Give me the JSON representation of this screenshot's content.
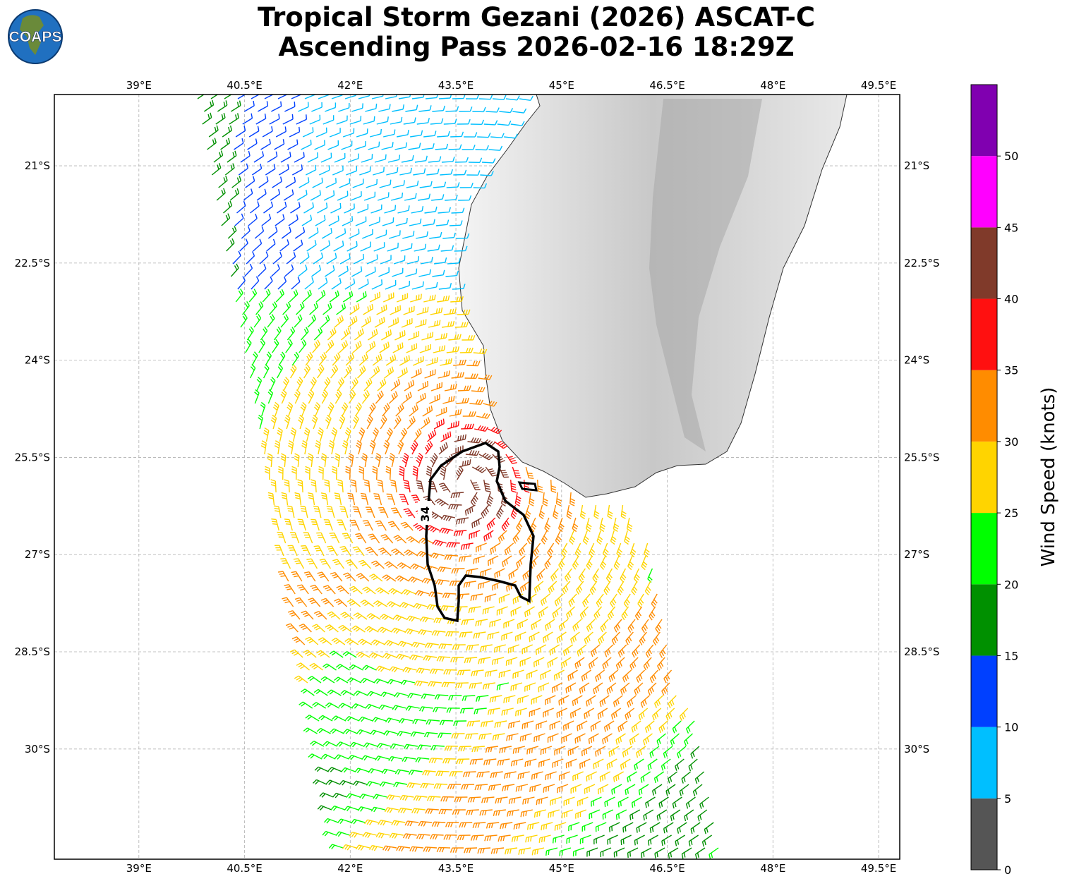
{
  "title": {
    "line1": "Tropical Storm Gezani (2026) ASCAT-C",
    "line2": "Ascending Pass 2026-02-16 18:29Z"
  },
  "logo": {
    "text": "COAPS",
    "icon": "globe-icon"
  },
  "map": {
    "lon_range": [
      37.8,
      49.8
    ],
    "lat_range": [
      -31.7,
      -19.9
    ],
    "lon_ticks": [
      39,
      40.5,
      42,
      43.5,
      45,
      46.5,
      48,
      49.5
    ],
    "lon_labels": [
      "39°E",
      "40.5°E",
      "42°E",
      "43.5°E",
      "45°E",
      "46.5°E",
      "48°E",
      "49.5°E"
    ],
    "lat_ticks": [
      -21,
      -22.5,
      -24,
      -25.5,
      -27,
      -28.5,
      -30
    ],
    "lat_labels": [
      "21°S",
      "22.5°S",
      "24°S",
      "25.5°S",
      "27°S",
      "28.5°S",
      "30°S"
    ],
    "gridlines": true,
    "land": "Madagascar",
    "contour_label": "34"
  },
  "colorbar": {
    "label": "Wind Speed (knots)",
    "bounds": [
      0,
      5,
      10,
      15,
      20,
      25,
      30,
      35,
      40,
      45,
      50,
      55
    ],
    "tick_labels": [
      "0",
      "5",
      "10",
      "15",
      "20",
      "25",
      "30",
      "35",
      "40",
      "45",
      "50"
    ],
    "colors": [
      "#555555",
      "#00bfff",
      "#0040ff",
      "#009000",
      "#00ff00",
      "#ffd400",
      "#ff8c00",
      "#ff1010",
      "#803a2a",
      "#ff00ff",
      "#8000b0",
      "#2a0060"
    ]
  }
}
